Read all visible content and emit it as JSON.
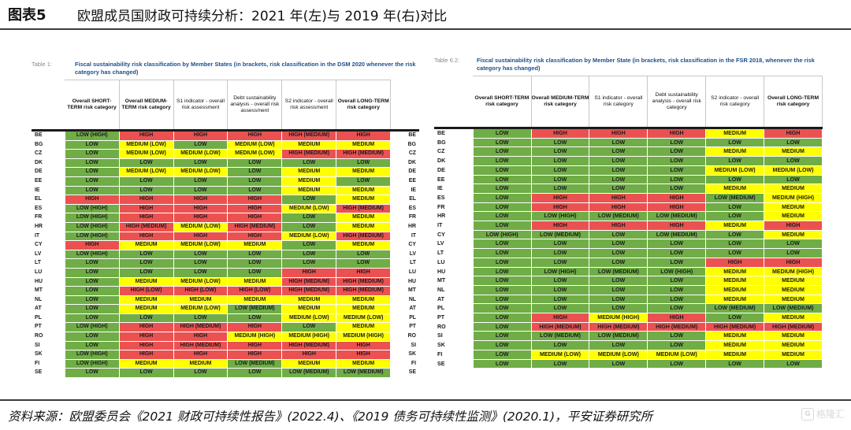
{
  "figure": {
    "number": "图表5",
    "title": "欧盟成员国财政可持续分析：2021 年(左)与 2019 年(右)对比"
  },
  "colors": {
    "LOW": "#70ad47",
    "MEDIUM": "#ffff00",
    "HIGH": "#ec5151"
  },
  "left_table": {
    "label": "Table 1:",
    "caption": "Fiscal sustainability risk classification by Member States (in brackets, risk classification in the DSM 2020 whenever the risk category has changed)",
    "headers": [
      {
        "text": "Overall SHORT-TERM risk category",
        "bold": true
      },
      {
        "text": "Overall MEDIUM-TERM risk category",
        "bold": true
      },
      {
        "text": "S1 indicator - overall risk assessment",
        "bold": false
      },
      {
        "text": "Debt sustainability analysis - overall risk assessment",
        "bold": false
      },
      {
        "text": "S2 indicator - overall risk assessment",
        "bold": false
      },
      {
        "text": "Overall LONG-TERM risk category",
        "bold": true
      }
    ],
    "rows": [
      [
        "BE",
        "LOW (HIGH)",
        "HIGH",
        "HIGH",
        "HIGH",
        "HIGH (MEDIUM)",
        "HIGH"
      ],
      [
        "BG",
        "LOW",
        "MEDIUM (LOW)",
        "LOW",
        "MEDIUM (LOW)",
        "MEDIUM",
        "MEDIUM"
      ],
      [
        "CZ",
        "LOW",
        "MEDIUM (LOW)",
        "MEDIUM (LOW)",
        "MEDIUM (LOW)",
        "HIGH (MEDIUM)",
        "HIGH (MEDIUM)"
      ],
      [
        "DK",
        "LOW",
        "LOW",
        "LOW",
        "LOW",
        "LOW",
        "LOW"
      ],
      [
        "DE",
        "LOW",
        "MEDIUM (LOW)",
        "MEDIUM (LOW)",
        "LOW",
        "MEDIUM",
        "MEDIUM"
      ],
      [
        "EE",
        "LOW",
        "LOW",
        "LOW",
        "LOW",
        "MEDIUM",
        "LOW"
      ],
      [
        "IE",
        "LOW",
        "LOW",
        "LOW",
        "LOW",
        "MEDIUM",
        "MEDIUM"
      ],
      [
        "EL",
        "HIGH",
        "HIGH",
        "HIGH",
        "HIGH",
        "LOW",
        "MEDIUM"
      ],
      [
        "ES",
        "LOW (HIGH)",
        "HIGH",
        "HIGH",
        "HIGH",
        "MEDIUM (LOW)",
        "HIGH (MEDIUM)"
      ],
      [
        "FR",
        "LOW (HIGH)",
        "HIGH",
        "HIGH",
        "HIGH",
        "LOW",
        "MEDIUM"
      ],
      [
        "HR",
        "LOW (HIGH)",
        "HIGH (MEDIUM)",
        "MEDIUM (LOW)",
        "HIGH (MEDIUM)",
        "LOW",
        "MEDIUM"
      ],
      [
        "IT",
        "LOW (HIGH)",
        "HIGH",
        "HIGH",
        "HIGH",
        "MEDIUM (LOW)",
        "HIGH (MEDIUM)"
      ],
      [
        "CY",
        "HIGH",
        "MEDIUM",
        "MEDIUM (LOW)",
        "MEDIUM",
        "LOW",
        "MEDIUM"
      ],
      [
        "LV",
        "LOW (HIGH)",
        "LOW",
        "LOW",
        "LOW",
        "LOW",
        "LOW"
      ],
      [
        "LT",
        "LOW",
        "LOW",
        "LOW",
        "LOW",
        "LOW",
        "LOW"
      ],
      [
        "LU",
        "LOW",
        "LOW",
        "LOW",
        "LOW",
        "HIGH",
        "HIGH"
      ],
      [
        "HU",
        "LOW",
        "MEDIUM",
        "MEDIUM (LOW)",
        "MEDIUM",
        "HIGH (MEDIUM)",
        "HIGH (MEDIUM)"
      ],
      [
        "MT",
        "LOW",
        "HIGH (LOW)",
        "HIGH (LOW)",
        "HIGH (LOW)",
        "HIGH (MEDIUM)",
        "HIGH (MEDIUM)"
      ],
      [
        "NL",
        "LOW",
        "MEDIUM",
        "MEDIUM",
        "MEDIUM",
        "MEDIUM",
        "MEDIUM"
      ],
      [
        "AT",
        "LOW",
        "MEDIUM",
        "MEDIUM (LOW)",
        "LOW (MEDIUM)",
        "MEDIUM",
        "MEDIUM"
      ],
      [
        "PL",
        "LOW",
        "LOW",
        "LOW",
        "LOW",
        "MEDIUM (LOW)",
        "MEDIUM (LOW)"
      ],
      [
        "PT",
        "LOW (HIGH)",
        "HIGH",
        "HIGH (MEDIUM)",
        "HIGH",
        "LOW",
        "MEDIUM"
      ],
      [
        "RO",
        "LOW",
        "HIGH",
        "HIGH",
        "MEDIUM (HIGH)",
        "MEDIUM (HIGH)",
        "MEDIUM (HIGH)"
      ],
      [
        "SI",
        "LOW",
        "HIGH",
        "HIGH (MEDIUM)",
        "HIGH",
        "HIGH (MEDIUM)",
        "HIGH"
      ],
      [
        "SK",
        "LOW (HIGH)",
        "HIGH",
        "HIGH",
        "HIGH",
        "HIGH",
        "HIGH"
      ],
      [
        "FI",
        "LOW (HIGH)",
        "MEDIUM",
        "MEDIUM",
        "LOW (MEDIUM)",
        "MEDIUM",
        "MEDIUM"
      ],
      [
        "SE",
        "LOW",
        "LOW",
        "LOW",
        "LOW",
        "LOW (MEDIUM)",
        "LOW (MEDIUM)"
      ]
    ]
  },
  "right_table": {
    "label": "Table 6.2:",
    "caption": "Fiscal sustainability risk classification by Member State (in brackets, risk classification in the FSR 2018, whenever the risk category has changed)",
    "headers": [
      {
        "text": "Overall SHORT-TERM risk category",
        "bold": true
      },
      {
        "text": "Overall MEDIUM-TERM risk category",
        "bold": true
      },
      {
        "text": "S1 indicator - overall risk category",
        "bold": false
      },
      {
        "text": "Debt sustainability analysis - overall risk category",
        "bold": false
      },
      {
        "text": "S2 indicator - overall risk category",
        "bold": false
      },
      {
        "text": "Overall LONG-TERM risk category",
        "bold": true
      }
    ],
    "rows": [
      [
        "BE",
        "LOW",
        "HIGH",
        "HIGH",
        "HIGH",
        "MEDIUM",
        "HIGH"
      ],
      [
        "BG",
        "LOW",
        "LOW",
        "LOW",
        "LOW",
        "LOW",
        "LOW"
      ],
      [
        "CZ",
        "LOW",
        "LOW",
        "LOW",
        "LOW",
        "MEDIUM",
        "MEDIUM"
      ],
      [
        "DK",
        "LOW",
        "LOW",
        "LOW",
        "LOW",
        "LOW",
        "LOW"
      ],
      [
        "DE",
        "LOW",
        "LOW",
        "LOW",
        "LOW",
        "MEDIUM (LOW)",
        "MEDIUM (LOW)"
      ],
      [
        "EE",
        "LOW",
        "LOW",
        "LOW",
        "LOW",
        "LOW",
        "LOW"
      ],
      [
        "IE",
        "LOW",
        "LOW",
        "LOW",
        "LOW",
        "MEDIUM",
        "MEDIUM"
      ],
      [
        "ES",
        "LOW",
        "HIGH",
        "HIGH",
        "HIGH",
        "LOW (MEDIUM)",
        "MEDIUM (HIGH)"
      ],
      [
        "FR",
        "LOW",
        "HIGH",
        "HIGH",
        "HIGH",
        "LOW",
        "MEDIUM"
      ],
      [
        "HR",
        "LOW",
        "LOW (HIGH)",
        "LOW (MEDIUM)",
        "LOW (MEDIUM)",
        "LOW",
        "MEDIUM"
      ],
      [
        "IT",
        "LOW",
        "HIGH",
        "HIGH",
        "HIGH",
        "MEDIUM",
        "HIGH"
      ],
      [
        "CY",
        "LOW (HIGH)",
        "LOW (MEDIUM)",
        "LOW",
        "LOW (MEDIUM)",
        "LOW",
        "MEDIUM"
      ],
      [
        "LV",
        "LOW",
        "LOW",
        "LOW",
        "LOW",
        "LOW",
        "LOW"
      ],
      [
        "LT",
        "LOW",
        "LOW",
        "LOW",
        "LOW",
        "LOW",
        "LOW"
      ],
      [
        "LU",
        "LOW",
        "LOW",
        "LOW",
        "LOW",
        "HIGH",
        "HIGH"
      ],
      [
        "HU",
        "LOW",
        "LOW (HIGH)",
        "LOW (MEDIUM)",
        "LOW (HIGH)",
        "MEDIUM",
        "MEDIUM (HIGH)"
      ],
      [
        "MT",
        "LOW",
        "LOW",
        "LOW",
        "LOW",
        "MEDIUM",
        "MEDIUM"
      ],
      [
        "NL",
        "LOW",
        "LOW",
        "LOW",
        "LOW",
        "MEDIUM",
        "MEDIUM"
      ],
      [
        "AT",
        "LOW",
        "LOW",
        "LOW",
        "LOW",
        "MEDIUM",
        "MEDIUM"
      ],
      [
        "PL",
        "LOW",
        "LOW",
        "LOW",
        "LOW",
        "LOW (MEDIUM)",
        "LOW (MEDIUM)"
      ],
      [
        "PT",
        "LOW",
        "HIGH",
        "MEDIUM (HIGH)",
        "HIGH",
        "LOW",
        "MEDIUM"
      ],
      [
        "RO",
        "LOW",
        "HIGH (MEDIUM)",
        "HIGH (MEDIUM)",
        "HIGH (MEDIUM)",
        "HIGH (MEDIUM)",
        "HIGH (MEDIUM)"
      ],
      [
        "SI",
        "LOW",
        "LOW (MEDIUM)",
        "LOW (MEDIUM)",
        "LOW",
        "MEDIUM",
        "MEDIUM"
      ],
      [
        "SK",
        "LOW",
        "LOW",
        "LOW",
        "LOW",
        "MEDIUM",
        "MEDIUM"
      ],
      [
        "FI",
        "LOW",
        "MEDIUM (LOW)",
        "MEDIUM (LOW)",
        "MEDIUM (LOW)",
        "MEDIUM",
        "MEDIUM"
      ],
      [
        "SE",
        "LOW",
        "LOW",
        "LOW",
        "LOW",
        "LOW",
        "LOW"
      ]
    ]
  },
  "source": "资料来源：欧盟委员会《2021 财政可持续性报告》(2022.4)、《2019 债务可持续性监测》(2020.1)，平安证券研究所",
  "watermark": {
    "logo": "G",
    "text": "格隆汇"
  }
}
